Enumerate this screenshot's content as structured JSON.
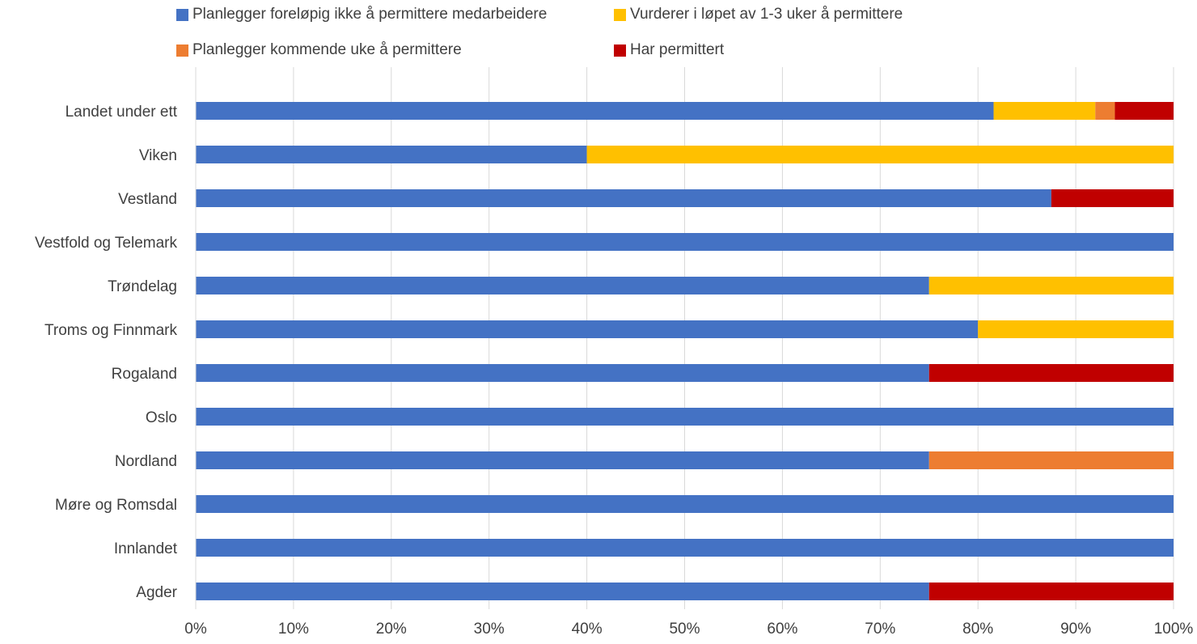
{
  "chart_data": {
    "type": "bar",
    "orientation": "horizontal",
    "stacked": "percent",
    "categories": [
      "Landet under ett",
      "Viken",
      "Vestland",
      "Vestfold og Telemark",
      "Trøndelag",
      "Troms og Finnmark",
      "Rogaland",
      "Oslo",
      "Nordland",
      "Møre og Romsdal",
      "Innlandet",
      "Agder"
    ],
    "series": [
      {
        "name": "Planlegger foreløpig ikke å permittere medarbeidere",
        "color": "#4472C4",
        "values": [
          81.6,
          40,
          87.5,
          100,
          75,
          80,
          75,
          100,
          75,
          100,
          100,
          75
        ]
      },
      {
        "name": "Vurderer i løpet av 1-3 uker å permittere",
        "color": "#FFC000",
        "values": [
          10.4,
          60,
          0,
          0,
          25,
          20,
          0,
          0,
          0,
          0,
          0,
          0
        ]
      },
      {
        "name": "Planlegger kommende uke å permittere",
        "color": "#ED7D31",
        "values": [
          2,
          0,
          0,
          0,
          0,
          0,
          0,
          0,
          25,
          0,
          0,
          0
        ]
      },
      {
        "name": "Har permittert",
        "color": "#C00000",
        "values": [
          6,
          0,
          12.5,
          0,
          0,
          0,
          25,
          0,
          0,
          0,
          0,
          25
        ]
      }
    ],
    "xticks": [
      "0%",
      "10%",
      "20%",
      "30%",
      "40%",
      "50%",
      "60%",
      "70%",
      "80%",
      "90%",
      "100%"
    ],
    "xlim": [
      0,
      100
    ],
    "grid": true,
    "legend_position": "top",
    "title": "",
    "xlabel": "",
    "ylabel": ""
  }
}
